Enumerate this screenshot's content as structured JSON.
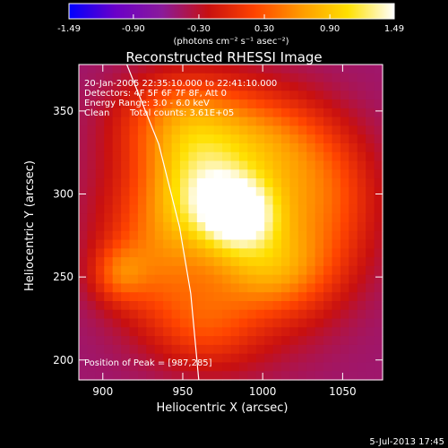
{
  "chart_data": {
    "type": "heatmap",
    "title": "Reconstructed RHESSI Image",
    "xlabel": "Heliocentric X (arcsec)",
    "ylabel": "Heliocentric Y (arcsec)",
    "xlim": [
      885,
      1075
    ],
    "ylim": [
      188,
      378
    ],
    "x_ticks": [
      900,
      950,
      1000,
      1050
    ],
    "x_tick_labels": [
      "900",
      "950",
      "1000",
      "1050"
    ],
    "y_ticks": [
      200,
      250,
      300,
      350
    ],
    "y_tick_labels": [
      "200",
      "250",
      "300",
      "350"
    ],
    "colorbar": {
      "range": [
        -1.49,
        1.49
      ],
      "ticks": [
        -1.49,
        -0.9,
        -0.3,
        0.3,
        0.9,
        1.49
      ],
      "tick_labels": [
        "-1.49",
        "-0.90",
        "-0.30",
        "0.30",
        "0.90",
        "1.49"
      ],
      "unit_label": "(photons cm⁻² s⁻¹ asec⁻²)",
      "colors": [
        "#0000ff",
        "#6a00c8",
        "#8a1a9a",
        "#c81010",
        "#ff4400",
        "#ff9a00",
        "#ffe000",
        "#ffffff"
      ]
    },
    "annotations": [
      "20-Jan-2005 22:35:10.000 to 22:41:10.000",
      "Detectors: 4F 5F 6F 7F 8F, Att 0",
      "Energy Range: 3.0 - 6.0 keV",
      "Clean",
      "Total counts: 3.61E+05"
    ],
    "peak_label": "Position of Peak = [987,285]",
    "peak": [
      987,
      285
    ],
    "limb_curve": [
      [
        915,
        378
      ],
      [
        935,
        330
      ],
      [
        948,
        280
      ],
      [
        955,
        240
      ],
      [
        960,
        188
      ]
    ],
    "sources": [
      {
        "x": 985,
        "y": 288,
        "amp": 1.49,
        "sx": 18,
        "sy": 16
      },
      {
        "x": 960,
        "y": 305,
        "amp": 0.95,
        "sx": 22,
        "sy": 22
      },
      {
        "x": 1005,
        "y": 255,
        "amp": 0.75,
        "sx": 25,
        "sy": 18
      },
      {
        "x": 950,
        "y": 345,
        "amp": 0.75,
        "sx": 28,
        "sy": 20
      },
      {
        "x": 1035,
        "y": 300,
        "amp": 0.55,
        "sx": 25,
        "sy": 30
      },
      {
        "x": 935,
        "y": 265,
        "amp": 0.5,
        "sx": 22,
        "sy": 28
      },
      {
        "x": 910,
        "y": 252,
        "amp": 0.55,
        "sx": 12,
        "sy": 12
      },
      {
        "x": 965,
        "y": 220,
        "amp": 0.4,
        "sx": 22,
        "sy": 18
      },
      {
        "x": 1000,
        "y": 330,
        "amp": 0.55,
        "sx": 25,
        "sy": 20
      }
    ],
    "background_level": -0.3
  },
  "timestamp": "5-Jul-2013 17:45"
}
